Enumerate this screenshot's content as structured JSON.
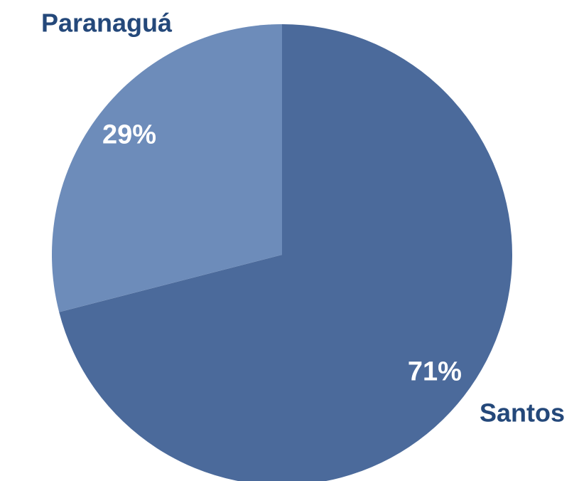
{
  "chart_data": {
    "type": "pie",
    "categories": [
      "Santos",
      "Paranaguá"
    ],
    "values": [
      71,
      29
    ],
    "value_labels": [
      "71%",
      "29%"
    ],
    "colors": [
      "#4b6a9b",
      "#6d8cba"
    ],
    "start_angle": 0,
    "direction": "clockwise"
  }
}
